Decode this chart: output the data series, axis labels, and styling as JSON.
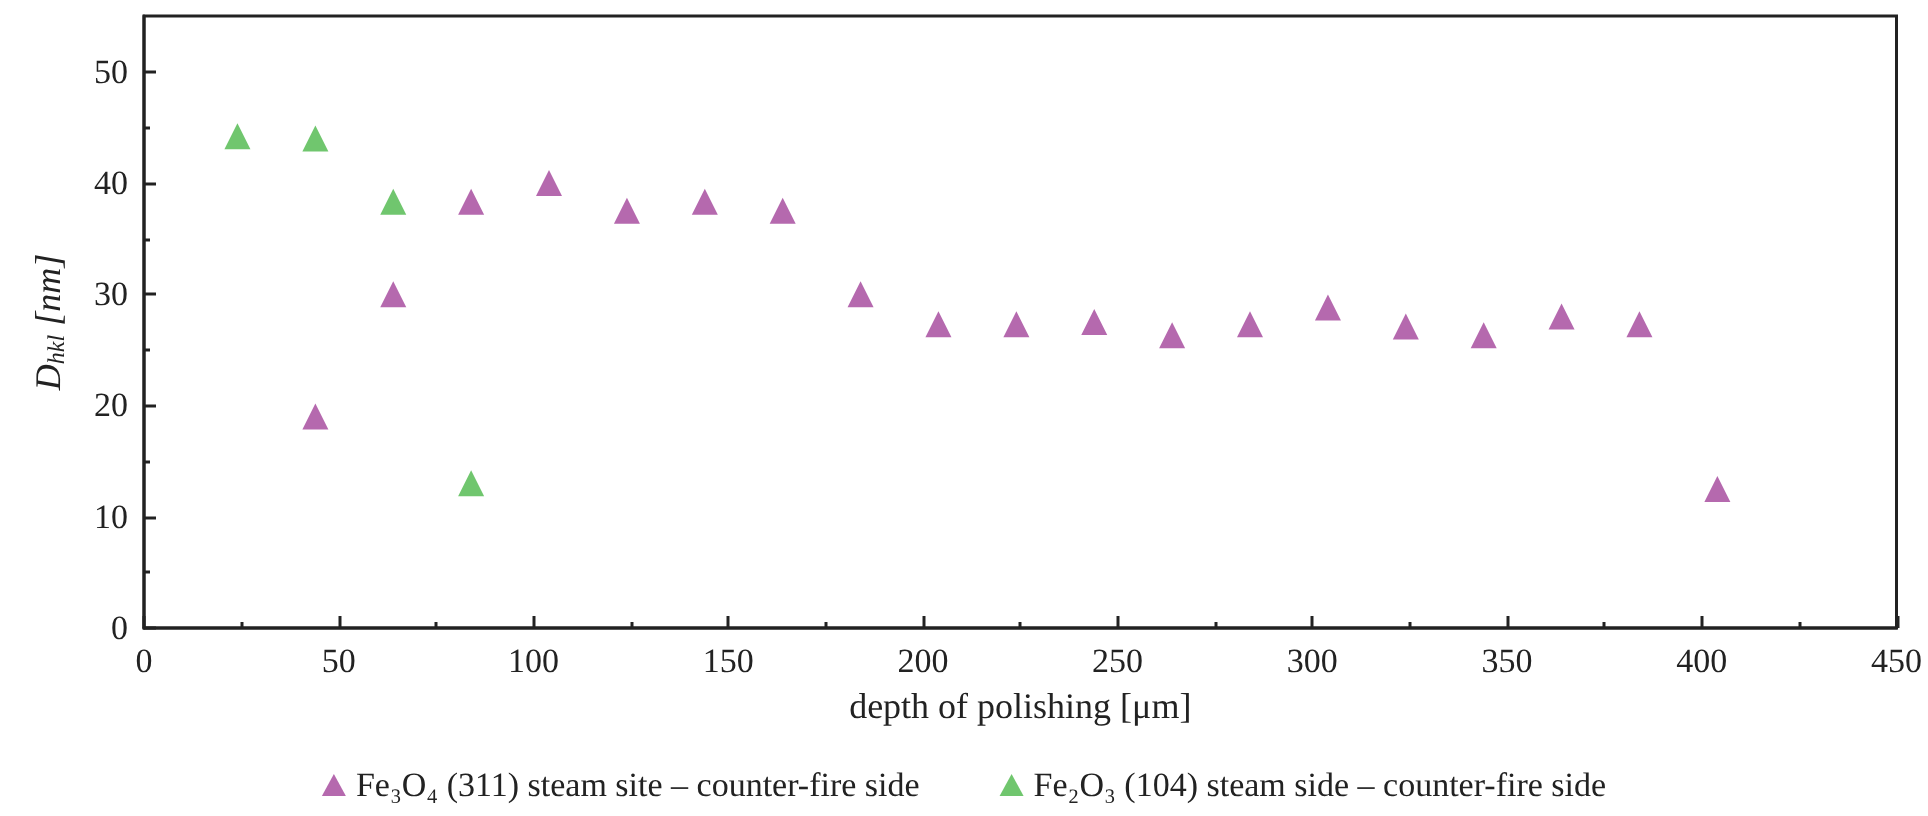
{
  "chart_data": {
    "type": "scatter",
    "xlabel": "depth of polishing [μm]",
    "ylabel": "D$_{hkl}$ [nm]",
    "xlim": [
      0,
      450
    ],
    "xticks": [
      0,
      50,
      100,
      150,
      200,
      250,
      300,
      350,
      400,
      450
    ],
    "ylim": [
      0,
      55
    ],
    "yticks": [
      0,
      10,
      20,
      30,
      40,
      50
    ],
    "grid": false,
    "legend": "bottom",
    "marker": "triangle",
    "series": [
      {
        "name": "Fe₃O₄ (311) steam site – counter-fire side",
        "color": "#a3449a",
        "x": [
          44,
          64,
          84,
          104,
          124,
          144,
          164,
          184,
          204,
          224,
          244,
          264,
          284,
          304,
          324,
          344,
          364,
          384,
          404
        ],
        "values": [
          19,
          30,
          38.3,
          40,
          37.5,
          38.3,
          37.5,
          30,
          27.3,
          27.3,
          27.5,
          26.3,
          27.3,
          28.8,
          27.1,
          26.3,
          28,
          27.3,
          12.5
        ]
      },
      {
        "name": "Fe₂O₃ (104) steam side – counter-fire side",
        "color": "#4cb84a",
        "x": [
          24,
          44,
          64,
          84
        ],
        "values": [
          44.2,
          44,
          38.3,
          13
        ]
      }
    ]
  }
}
